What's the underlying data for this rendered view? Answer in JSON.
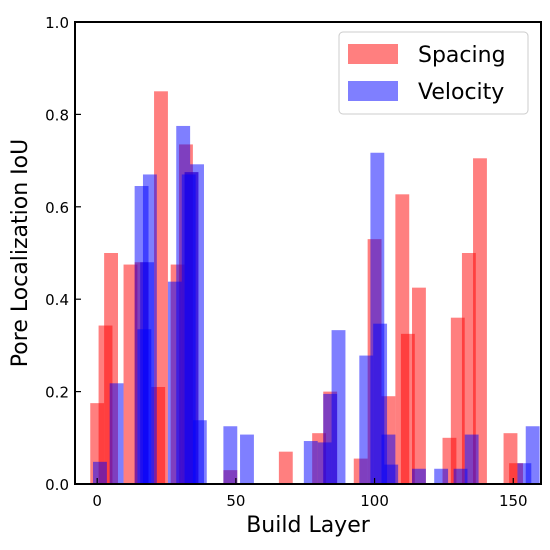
{
  "chart_data": {
    "type": "bar",
    "xlabel": "Build Layer",
    "ylabel": "Pore Localization IoU",
    "xlim": [
      -8,
      160
    ],
    "ylim": [
      0,
      1.0
    ],
    "xticks": [
      0,
      50,
      100,
      150
    ],
    "yticks": [
      0.0,
      0.2,
      0.4,
      0.6,
      0.8,
      1.0
    ],
    "xtick_labels": [
      "0",
      "50",
      "100",
      "150"
    ],
    "ytick_labels": [
      "0.0",
      "0.2",
      "0.4",
      "0.6",
      "0.8",
      "1.0"
    ],
    "bar_width": 5,
    "legend_position": "top-right",
    "grid": false,
    "series": [
      {
        "name": "Spacing",
        "color": "#ff0000",
        "opacity": 0.5,
        "x": [
          0,
          3,
          5,
          12,
          16,
          22,
          23,
          29,
          32,
          34,
          48,
          68,
          80,
          84,
          95,
          100,
          105,
          110,
          112,
          116,
          127,
          130,
          134,
          138,
          149,
          151
        ],
        "values": [
          0.175,
          0.343,
          0.5,
          0.475,
          0.48,
          0.21,
          0.85,
          0.475,
          0.735,
          0.675,
          0.03,
          0.07,
          0.11,
          0.2,
          0.055,
          0.53,
          0.19,
          0.627,
          0.325,
          0.425,
          0.1,
          0.36,
          0.5,
          0.705,
          0.11,
          0.045
        ]
      },
      {
        "name": "Velocity",
        "color": "#0000ff",
        "opacity": 0.5,
        "x": [
          1,
          7,
          16,
          17,
          18,
          19,
          28,
          31,
          33,
          34,
          36,
          37,
          48,
          54,
          77,
          82,
          84,
          87,
          97,
          101,
          102,
          105,
          106,
          116,
          124,
          131,
          135,
          154,
          157
        ],
        "values": [
          0.048,
          0.218,
          0.645,
          0.335,
          0.48,
          0.67,
          0.438,
          0.775,
          0.67,
          0.675,
          0.692,
          0.138,
          0.125,
          0.107,
          0.093,
          0.09,
          0.195,
          0.333,
          0.278,
          0.717,
          0.347,
          0.107,
          0.042,
          0.033,
          0.033,
          0.033,
          0.107,
          0.045,
          0.125
        ]
      }
    ]
  }
}
